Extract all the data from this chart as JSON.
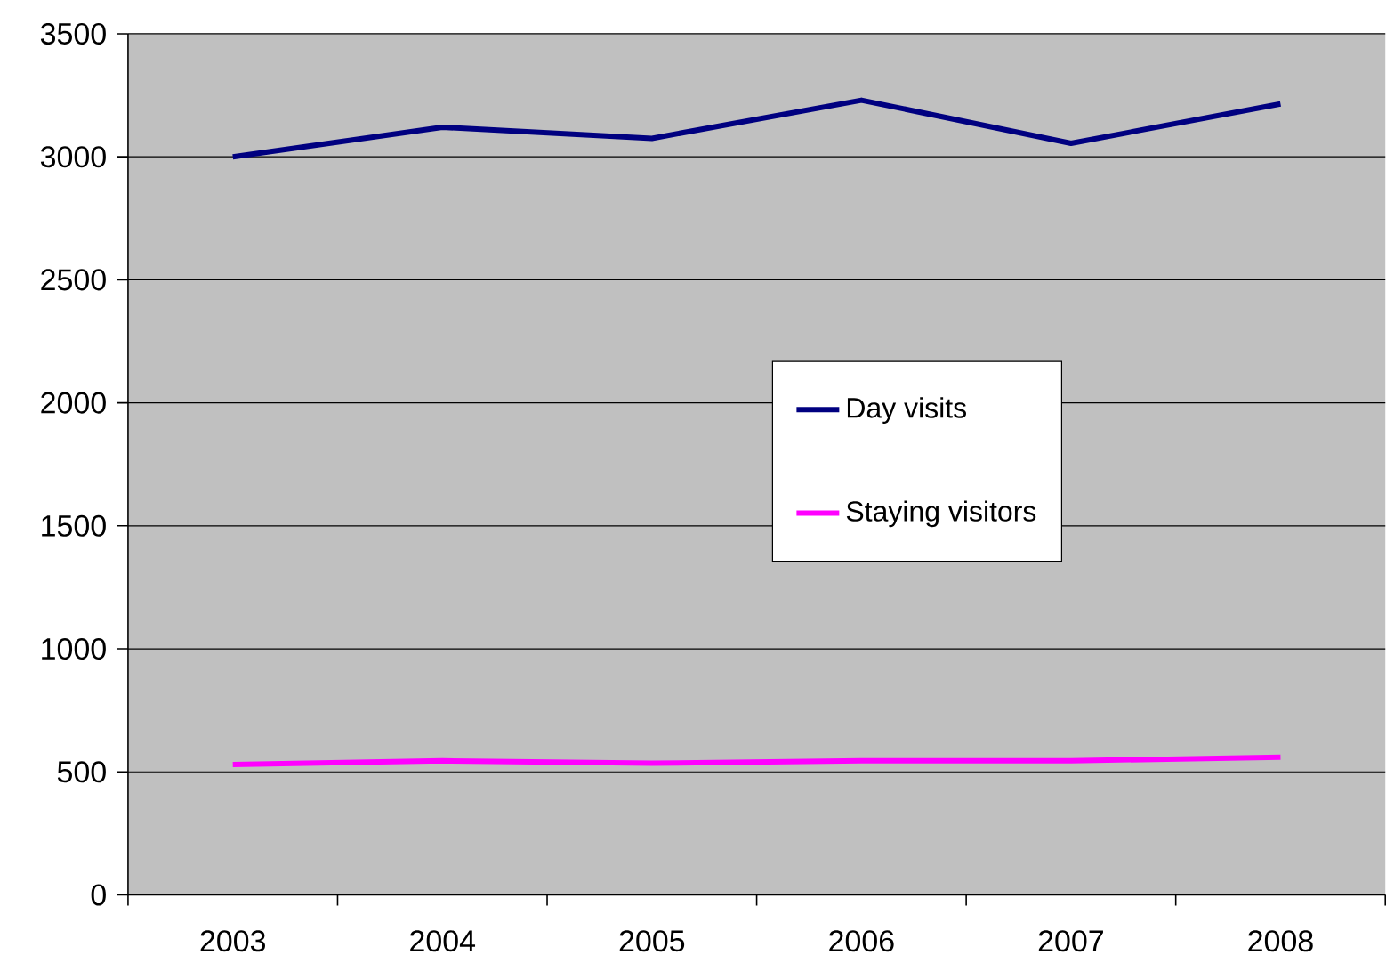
{
  "chart_data": {
    "type": "line",
    "categories": [
      "2003",
      "2004",
      "2005",
      "2006",
      "2007",
      "2008"
    ],
    "series": [
      {
        "name": "Day visits",
        "color": "#000080",
        "values": [
          3000,
          3120,
          3075,
          3230,
          3055,
          3215
        ]
      },
      {
        "name": "Staying visitors",
        "color": "#ff00ff",
        "values": [
          530,
          545,
          535,
          545,
          545,
          560
        ]
      }
    ],
    "ylim": [
      0,
      3500
    ],
    "yticks": [
      0,
      500,
      1000,
      1500,
      2000,
      2500,
      3000,
      3500
    ],
    "grid": "y",
    "legend": "center",
    "marker": "none",
    "line_style": "solid"
  }
}
